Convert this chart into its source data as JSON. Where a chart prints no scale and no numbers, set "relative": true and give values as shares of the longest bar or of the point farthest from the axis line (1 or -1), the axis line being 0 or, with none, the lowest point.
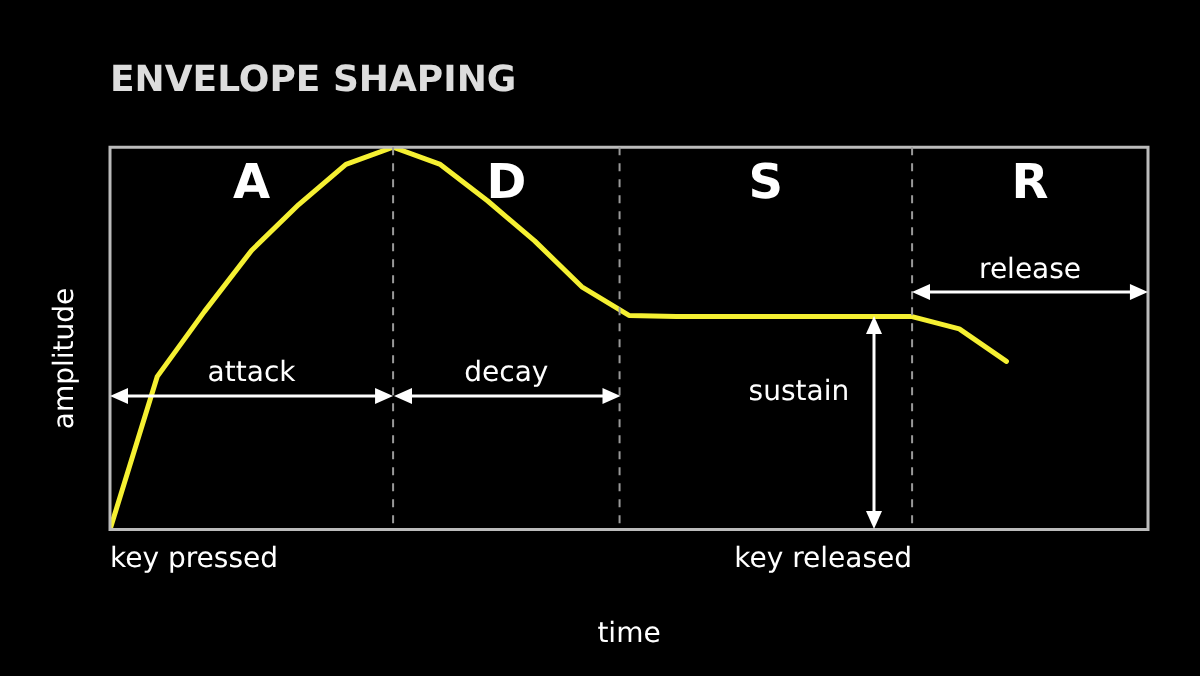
{
  "chart_data": {
    "type": "line",
    "title": "ENVELOPE SHAPING",
    "xlabel": "time",
    "ylabel": "amplitude",
    "relative": true,
    "marker": "none",
    "line_style": "solid",
    "categories": [
      null,
      null,
      null,
      null,
      null,
      null,
      null,
      null,
      null,
      null,
      null,
      null,
      null,
      null,
      null,
      null,
      null,
      null,
      null,
      null,
      null,
      null,
      null
    ],
    "series": [
      {
        "color": "#f5f032",
        "values": [
          0,
          0.4,
          0.57,
          0.73,
          0.85,
          0.955,
          1,
          0.955,
          0.86,
          0.755,
          0.635,
          0.56,
          0.557,
          0.557,
          0.557,
          0.557,
          0.557,
          0.557,
          0.525,
          0.44,
          null,
          null,
          null
        ]
      }
    ],
    "annotations": [
      "A",
      "D",
      "S",
      "R",
      "attack",
      "decay",
      "sustain",
      "release",
      "key pressed",
      "key released"
    ]
  }
}
